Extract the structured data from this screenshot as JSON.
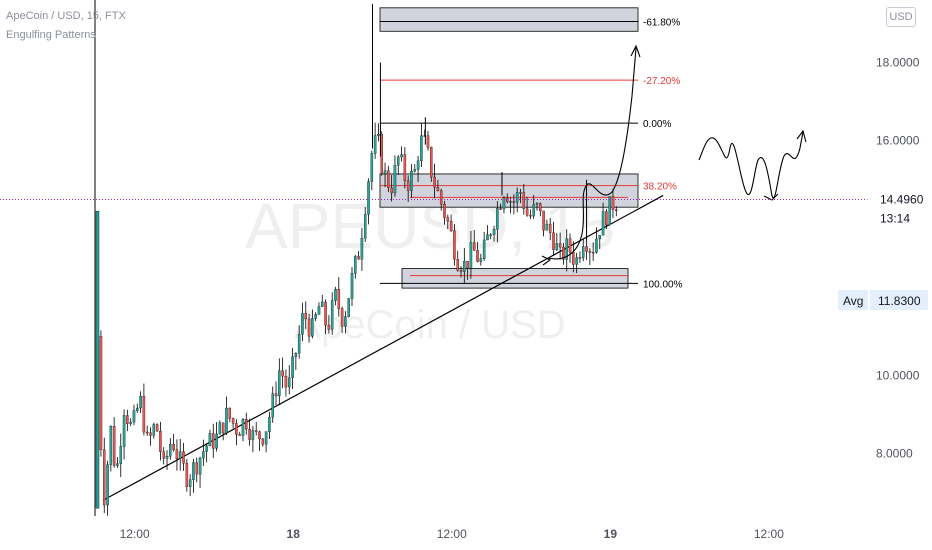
{
  "header": {
    "symbol_line": "ApeCoin / USD, 15, FTX",
    "indicator_line": "Engulfing Patterns",
    "currency_badge": "USD"
  },
  "watermark": {
    "ticker": "APEUSD, 15",
    "name": "ApeCoin / USD"
  },
  "price_badge": {
    "value": "14.4960",
    "countdown": "13:14"
  },
  "avg_badge": {
    "label": "Avg",
    "value": "11.8300"
  },
  "colors": {
    "up": "#26a69a",
    "down": "#ef5350",
    "fib_red": "#e53935",
    "fib_black": "#000000",
    "zone_fill": "#d1d4dc",
    "price_line": "#9c27b0"
  },
  "chart_data": {
    "type": "candlestick",
    "ylim": [
      6.4,
      19.6
    ],
    "y_ticks": [
      "18.0000",
      "16.0000",
      "10.0000",
      "8.0000"
    ],
    "x_ticks": [
      "12:00",
      "18",
      "12:00",
      "19",
      "12:00"
    ],
    "x_tick_positions_hours": [
      12,
      24,
      36,
      48,
      60
    ],
    "x_range_hours": [
      9,
      67.5
    ],
    "current_price": 14.496,
    "price_path": [
      [
        9.2,
        11.0
      ],
      [
        9.6,
        6.6
      ],
      [
        10.2,
        8.6
      ],
      [
        10.6,
        7.4
      ],
      [
        11.2,
        9.2
      ],
      [
        11.8,
        8.6
      ],
      [
        12.4,
        9.4
      ],
      [
        13.0,
        8.2
      ],
      [
        13.6,
        8.8
      ],
      [
        14.2,
        7.6
      ],
      [
        14.8,
        8.4
      ],
      [
        15.4,
        7.8
      ],
      [
        16.0,
        7.4
      ],
      [
        16.6,
        7.7
      ],
      [
        17.4,
        8.2
      ],
      [
        18.2,
        8.4
      ],
      [
        19.0,
        9.0
      ],
      [
        19.8,
        8.6
      ],
      [
        20.4,
        8.9
      ],
      [
        21.0,
        8.4
      ],
      [
        21.8,
        8.5
      ],
      [
        22.4,
        9.2
      ],
      [
        23.0,
        10.2
      ],
      [
        23.6,
        9.6
      ],
      [
        24.2,
        10.6
      ],
      [
        24.8,
        11.6
      ],
      [
        25.4,
        11.1
      ],
      [
        26.0,
        11.8
      ],
      [
        26.6,
        11.2
      ],
      [
        27.2,
        12.0
      ],
      [
        27.8,
        11.4
      ],
      [
        28.4,
        12.4
      ],
      [
        29.0,
        13.2
      ],
      [
        29.6,
        14.8
      ],
      [
        30.0,
        15.8
      ],
      [
        30.4,
        16.0
      ],
      [
        30.8,
        15.2
      ],
      [
        31.4,
        14.8
      ],
      [
        32.0,
        15.6
      ],
      [
        32.6,
        14.9
      ],
      [
        33.2,
        15.2
      ],
      [
        33.6,
        16.0
      ],
      [
        34.0,
        15.9
      ],
      [
        34.6,
        15.0
      ],
      [
        35.2,
        14.4
      ],
      [
        35.8,
        13.8
      ],
      [
        36.4,
        13.0
      ],
      [
        37.0,
        12.8
      ],
      [
        37.6,
        13.2
      ],
      [
        38.2,
        12.9
      ],
      [
        38.8,
        13.6
      ],
      [
        39.4,
        14.2
      ],
      [
        40.0,
        14.8
      ],
      [
        40.6,
        14.4
      ],
      [
        41.2,
        14.7
      ],
      [
        41.8,
        14.0
      ],
      [
        42.4,
        14.3
      ],
      [
        43.0,
        13.8
      ],
      [
        43.6,
        13.6
      ],
      [
        44.2,
        13.0
      ],
      [
        44.8,
        13.3
      ],
      [
        45.4,
        12.9
      ],
      [
        46.0,
        13.6
      ],
      [
        46.6,
        13.2
      ],
      [
        47.2,
        13.8
      ],
      [
        47.8,
        14.2
      ],
      [
        48.2,
        14.4
      ],
      [
        48.6,
        14.5
      ]
    ],
    "wick_spikes": [
      [
        30.0,
        19.5
      ],
      [
        30.6,
        18.0
      ],
      [
        34.0,
        16.6
      ],
      [
        39.8,
        15.2
      ],
      [
        46.2,
        15.0
      ]
    ],
    "fib_levels": [
      {
        "label": "-61.80%",
        "price": 19.05,
        "color": "black"
      },
      {
        "label": "-27.20%",
        "price": 17.55,
        "color": "red"
      },
      {
        "label": "0.00%",
        "price": 16.45,
        "color": "black"
      },
      {
        "label": "38.20%",
        "price": 14.85,
        "color": "red"
      },
      {
        "label": "100.00%",
        "price": 12.35,
        "color": "black"
      }
    ],
    "trendline": [
      [
        9.6,
        6.8
      ],
      [
        52.0,
        14.6
      ]
    ]
  }
}
